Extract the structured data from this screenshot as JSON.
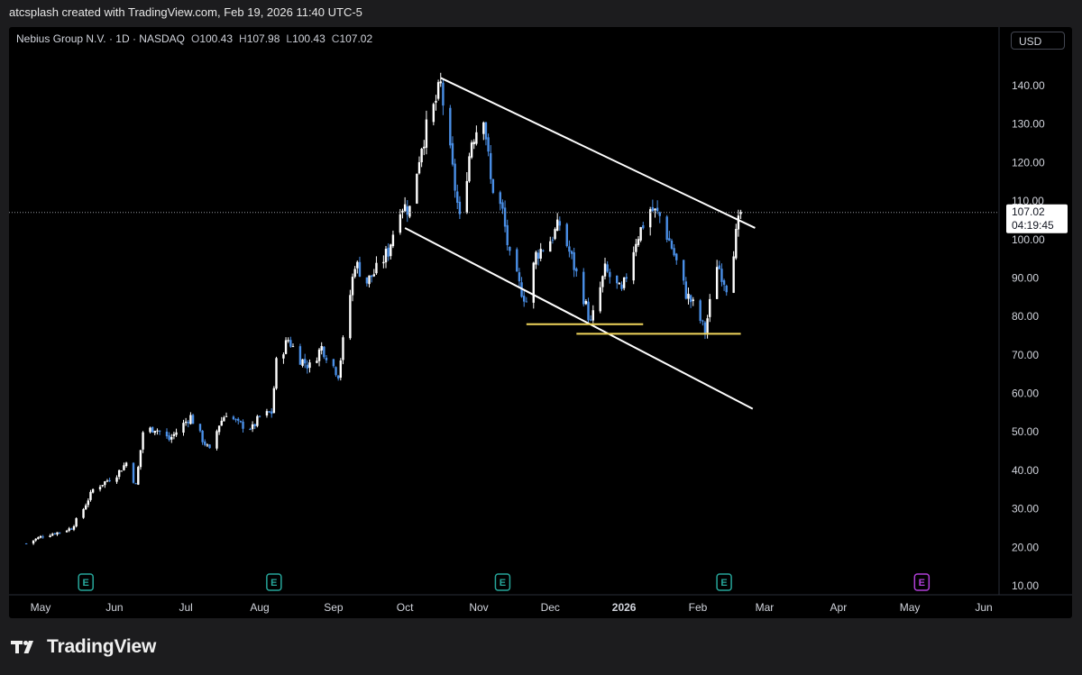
{
  "header": {
    "credit": "atcsplash created with TradingView.com, Feb 19, 2026 11:40 UTC-5"
  },
  "legend": {
    "symbol": "Nebius Group N.V. · 1D · NASDAQ",
    "open_label": "O",
    "open": "100.43",
    "high_label": "H",
    "high": "107.98",
    "low_label": "L",
    "low": "100.43",
    "close_label": "C",
    "close": "107.02"
  },
  "currency": "USD",
  "last_price": {
    "price": "107.02",
    "countdown": "04:19:45"
  },
  "footer": {
    "brand": "TradingView"
  },
  "colors": {
    "background": "#000000",
    "up_candle": "#ffffff",
    "down_candle": "#4a8fe7",
    "trendline": "#ffffff",
    "support": "#f0d55b",
    "earnings": "#26a69a",
    "earnings_future": "#b03fd8"
  },
  "chart_data": {
    "type": "candlestick",
    "interval": "1D",
    "ylim": [
      10,
      145
    ],
    "y_ticks": [
      "10.00",
      "20.00",
      "30.00",
      "40.00",
      "50.00",
      "60.00",
      "70.00",
      "80.00",
      "90.00",
      "100.00",
      "110.00",
      "120.00",
      "130.00",
      "140.00"
    ],
    "x_ticks": [
      "May",
      "Jun",
      "Jul",
      "Aug",
      "Sep",
      "Oct",
      "Nov",
      "Dec",
      "2026",
      "Jan_hidden",
      "Feb",
      "Mar",
      "Apr",
      "May",
      "Jun"
    ],
    "x_tick_labels": [
      "May",
      "Jun",
      "Jul",
      "Aug",
      "Sep",
      "Oct",
      "Nov",
      "Dec",
      "2026",
      "Feb",
      "Mar",
      "Apr",
      "May",
      "Jun"
    ],
    "x_tick_dates": [
      "2025-05-01",
      "2025-06-01",
      "2025-07-01",
      "2025-08-01",
      "2025-09-01",
      "2025-10-01",
      "2025-11-01",
      "2025-12-01",
      "2026-01-01",
      "2026-02-01",
      "2026-03-01",
      "2026-04-01",
      "2026-05-01",
      "2026-06-01"
    ],
    "current_price": 107.02,
    "price_path": [
      [
        "2025-04-25",
        21
      ],
      [
        "2025-05-02",
        23
      ],
      [
        "2025-05-09",
        24
      ],
      [
        "2025-05-14",
        25
      ],
      [
        "2025-05-19",
        30
      ],
      [
        "2025-05-23",
        35
      ],
      [
        "2025-05-28",
        37
      ],
      [
        "2025-06-02",
        39
      ],
      [
        "2025-06-06",
        42
      ],
      [
        "2025-06-10",
        36
      ],
      [
        "2025-06-13",
        50
      ],
      [
        "2025-06-18",
        51
      ],
      [
        "2025-06-24",
        48
      ],
      [
        "2025-06-30",
        52
      ],
      [
        "2025-07-03",
        54
      ],
      [
        "2025-07-08",
        48
      ],
      [
        "2025-07-11",
        45
      ],
      [
        "2025-07-15",
        52
      ],
      [
        "2025-07-18",
        55
      ],
      [
        "2025-07-23",
        52
      ],
      [
        "2025-07-29",
        51
      ],
      [
        "2025-08-01",
        54
      ],
      [
        "2025-08-06",
        55
      ],
      [
        "2025-08-08",
        68
      ],
      [
        "2025-08-13",
        74
      ],
      [
        "2025-08-18",
        69
      ],
      [
        "2025-08-22",
        67
      ],
      [
        "2025-08-27",
        72
      ],
      [
        "2025-08-29",
        70
      ],
      [
        "2025-09-03",
        65
      ],
      [
        "2025-09-10",
        94
      ],
      [
        "2025-09-15",
        89
      ],
      [
        "2025-09-19",
        92
      ],
      [
        "2025-09-24",
        97
      ],
      [
        "2025-09-29",
        109
      ],
      [
        "2025-10-03",
        108
      ],
      [
        "2025-10-08",
        125
      ],
      [
        "2025-10-13",
        134
      ],
      [
        "2025-10-16",
        140
      ],
      [
        "2025-10-20",
        122
      ],
      [
        "2025-10-24",
        105
      ],
      [
        "2025-10-29",
        126
      ],
      [
        "2025-11-03",
        133
      ],
      [
        "2025-11-06",
        115
      ],
      [
        "2025-11-11",
        107
      ],
      [
        "2025-11-14",
        95
      ],
      [
        "2025-11-18",
        88
      ],
      [
        "2025-11-21",
        84
      ],
      [
        "2025-11-25",
        96
      ],
      [
        "2025-12-01",
        100
      ],
      [
        "2025-12-05",
        104
      ],
      [
        "2025-12-10",
        95
      ],
      [
        "2025-12-15",
        85
      ],
      [
        "2025-12-18",
        78
      ],
      [
        "2025-12-24",
        92
      ],
      [
        "2025-12-31",
        86
      ],
      [
        "2026-01-06",
        100
      ],
      [
        "2026-01-12",
        108
      ],
      [
        "2026-01-16",
        106
      ],
      [
        "2026-01-21",
        98
      ],
      [
        "2026-01-27",
        86
      ],
      [
        "2026-01-31",
        82
      ],
      [
        "2026-02-04",
        76
      ],
      [
        "2026-02-09",
        94
      ],
      [
        "2026-02-13",
        88
      ],
      [
        "2026-02-17",
        101
      ],
      [
        "2026-02-19",
        107
      ]
    ],
    "drawings": {
      "channel_upper": [
        [
          "2025-10-16",
          142
        ],
        [
          "2026-02-25",
          103
        ]
      ],
      "channel_lower": [
        [
          "2025-10-01",
          103
        ],
        [
          "2026-02-24",
          56
        ]
      ],
      "support_1": [
        [
          "2025-11-21",
          78
        ],
        [
          "2026-01-09",
          78
        ]
      ],
      "support_2": [
        [
          "2025-12-12",
          75.5
        ],
        [
          "2026-02-19",
          75.5
        ]
      ]
    },
    "earnings_markers": [
      {
        "date": "2025-05-20",
        "label": "E"
      },
      {
        "date": "2025-08-07",
        "label": "E"
      },
      {
        "date": "2025-11-11",
        "label": "E"
      },
      {
        "date": "2026-02-12",
        "label": "E"
      },
      {
        "date": "2026-05-06",
        "label": "E",
        "future": true
      }
    ]
  }
}
